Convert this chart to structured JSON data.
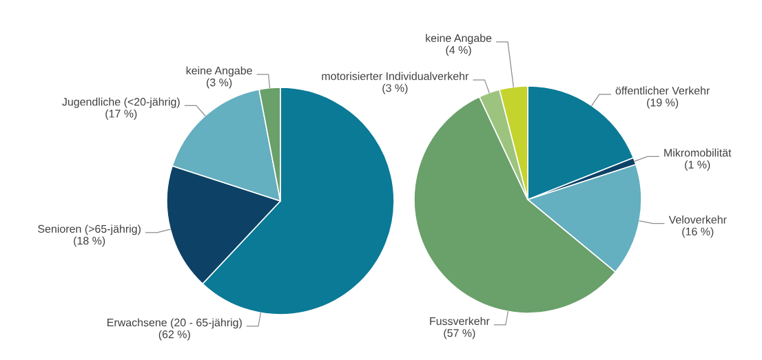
{
  "chart_data": [
    {
      "type": "pie",
      "categories": [
        "Erwachsene (20 - 65-jährig)",
        "Senioren (>65-jährig)",
        "Jugendliche (<20-jährig)",
        "keine Angabe"
      ],
      "values": [
        62,
        18,
        17,
        3
      ],
      "colors": [
        "#0a7a96",
        "#0d4266",
        "#64afc0",
        "#6aa06a"
      ],
      "value_labels": [
        "(62 %)",
        "(18 %)",
        "(17 %)",
        "(3 %)"
      ]
    },
    {
      "type": "pie",
      "categories": [
        "öffentlicher Verkehr",
        "Mikromobilität",
        "Veloverkehr",
        "Fussverkehr",
        "motorisierter Individualverkehr",
        "keine Angabe"
      ],
      "values": [
        19,
        1,
        16,
        57,
        3,
        4
      ],
      "colors": [
        "#0a7a96",
        "#0d4266",
        "#64afc0",
        "#6aa06a",
        "#9cc47e",
        "#c5d32e"
      ],
      "value_labels": [
        "(19 %)",
        "(1 %)",
        "(16 %)",
        "(57 %)",
        "(3 %)",
        "(4 %)"
      ]
    }
  ]
}
